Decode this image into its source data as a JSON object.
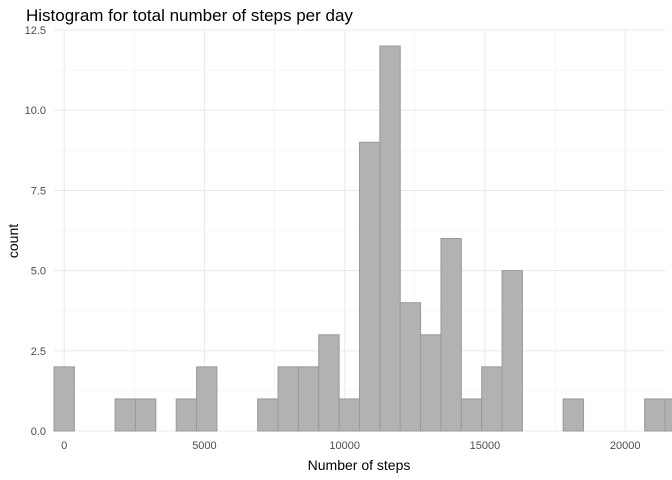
{
  "chart_data": {
    "type": "bar",
    "title": "Histogram for total number of steps per day",
    "xlabel": "Number of steps",
    "ylabel": "count",
    "bin_width": 726.06,
    "x_first_bin_center": 0,
    "bin_centers_note": "",
    "values": [
      2,
      0,
      0,
      1,
      1,
      0,
      1,
      2,
      0,
      0,
      1,
      2,
      2,
      3,
      1,
      9,
      12,
      4,
      3,
      6,
      1,
      2,
      5,
      0,
      0,
      1,
      0,
      0,
      0,
      1,
      1
    ],
    "xlim": [
      -363.03,
      21418.76
    ],
    "ylim": [
      0,
      12.5
    ],
    "x_ticks": [
      0,
      5000,
      10000,
      15000,
      20000
    ],
    "x_tick_labels": [
      "0",
      "5000",
      "10000",
      "15000",
      "20000"
    ],
    "y_ticks": [
      0,
      2.5,
      5,
      7.5,
      10,
      12.5
    ],
    "y_tick_labels": [
      "0.0",
      "2.5",
      "5.0",
      "7.5",
      "10.0",
      "12.5"
    ],
    "grid": true,
    "bar_fill": "#b2b2b2",
    "bar_stroke": "#999999"
  }
}
